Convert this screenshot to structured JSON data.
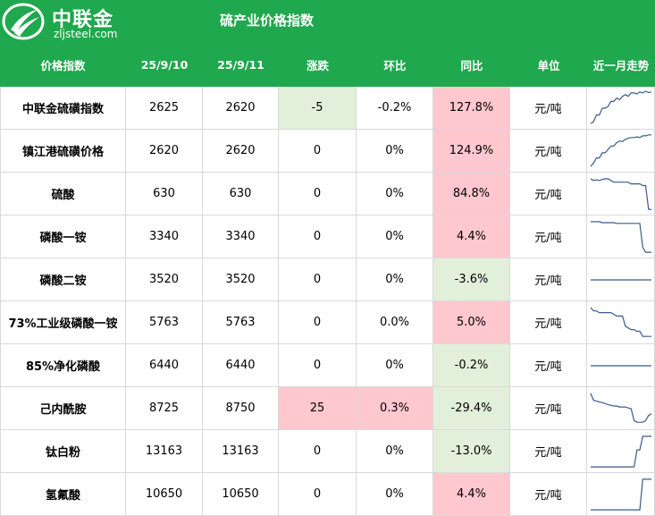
{
  "header": {
    "logo_cn": "中联金",
    "logo_url": "zljsteel.com",
    "title": "硫产业价格指数"
  },
  "columns": [
    "价格指数",
    "25/9/10",
    "25/9/11",
    "涨跌",
    "环比",
    "同比",
    "单位",
    "近一月走势"
  ],
  "colors": {
    "brand_green": "#1fa84d",
    "up_fill": "#ffc7ce",
    "down_fill": "#e2efda",
    "sparkline": "#3b5a8c"
  },
  "rows": [
    {
      "name": "中联金硫磺指数",
      "d1": "2625",
      "d2": "2620",
      "change": "-5",
      "mom": "-0.2%",
      "yoy": "127.8%",
      "unit": "元/吨",
      "change_bg": "green",
      "mom_bg": "none",
      "yoy_bg": "red"
    },
    {
      "name": "镇江港硫磺价格",
      "d1": "2620",
      "d2": "2620",
      "change": "0",
      "mom": "0%",
      "yoy": "124.9%",
      "unit": "元/吨",
      "change_bg": "none",
      "mom_bg": "none",
      "yoy_bg": "red"
    },
    {
      "name": "硫酸",
      "d1": "630",
      "d2": "630",
      "change": "0",
      "mom": "0%",
      "yoy": "84.8%",
      "unit": "元/吨",
      "change_bg": "none",
      "mom_bg": "none",
      "yoy_bg": "red"
    },
    {
      "name": "磷酸一铵",
      "d1": "3340",
      "d2": "3340",
      "change": "0",
      "mom": "0%",
      "yoy": "4.4%",
      "unit": "元/吨",
      "change_bg": "none",
      "mom_bg": "none",
      "yoy_bg": "red"
    },
    {
      "name": "磷酸二铵",
      "d1": "3520",
      "d2": "3520",
      "change": "0",
      "mom": "0%",
      "yoy": "-3.6%",
      "unit": "元/吨",
      "change_bg": "none",
      "mom_bg": "none",
      "yoy_bg": "green"
    },
    {
      "name": "73%工业级磷酸一铵",
      "d1": "5763",
      "d2": "5763",
      "change": "0",
      "mom": "0.0%",
      "yoy": "5.0%",
      "unit": "元/吨",
      "change_bg": "none",
      "mom_bg": "none",
      "yoy_bg": "red"
    },
    {
      "name": "85%净化磷酸",
      "d1": "6440",
      "d2": "6440",
      "change": "0",
      "mom": "0%",
      "yoy": "-0.2%",
      "unit": "元/吨",
      "change_bg": "none",
      "mom_bg": "none",
      "yoy_bg": "green"
    },
    {
      "name": "己内酰胺",
      "d1": "8725",
      "d2": "8750",
      "change": "25",
      "mom": "0.3%",
      "yoy": "-29.4%",
      "unit": "元/吨",
      "change_bg": "red",
      "mom_bg": "red",
      "yoy_bg": "green"
    },
    {
      "name": "钛白粉",
      "d1": "13163",
      "d2": "13163",
      "change": "0",
      "mom": "0%",
      "yoy": "-13.0%",
      "unit": "元/吨",
      "change_bg": "none",
      "mom_bg": "none",
      "yoy_bg": "green"
    },
    {
      "name": "氢氟酸",
      "d1": "10650",
      "d2": "10650",
      "change": "0",
      "mom": "0%",
      "yoy": "4.4%",
      "unit": "元/吨",
      "change_bg": "none",
      "mom_bg": "none",
      "yoy_bg": "red"
    }
  ],
  "trends": [
    [
      0.05,
      0.1,
      0.3,
      0.3,
      0.5,
      0.5,
      0.55,
      0.7,
      0.7,
      0.8,
      0.75,
      0.85,
      0.9,
      0.85,
      0.95,
      0.95,
      0.92,
      0.98,
      0.95,
      1.0,
      0.96,
      0.98
    ],
    [
      0.05,
      0.15,
      0.3,
      0.3,
      0.45,
      0.45,
      0.55,
      0.65,
      0.65,
      0.75,
      0.8,
      0.78,
      0.85,
      0.88,
      0.9,
      0.9,
      0.92,
      0.9,
      0.95,
      0.95,
      0.98,
      0.98
    ],
    [
      0.95,
      0.9,
      0.92,
      0.9,
      0.93,
      0.95,
      0.95,
      0.9,
      0.85,
      0.85,
      0.85,
      0.85,
      0.85,
      0.85,
      0.8,
      0.8,
      0.8,
      0.8,
      0.75,
      0.75,
      0.05,
      0.05
    ],
    [
      0.95,
      0.95,
      0.95,
      0.95,
      0.92,
      0.92,
      0.92,
      0.92,
      0.92,
      0.9,
      0.9,
      0.9,
      0.9,
      0.9,
      0.9,
      0.9,
      0.9,
      0.9,
      0.2,
      0.05,
      0.05,
      0.05
    ],
    [
      0.5,
      0.5,
      0.5,
      0.5,
      0.5,
      0.5,
      0.5,
      0.5,
      0.5,
      0.5,
      0.5,
      0.5,
      0.5,
      0.5,
      0.5,
      0.5,
      0.5,
      0.5,
      0.5,
      0.5,
      0.5,
      0.5
    ],
    [
      0.95,
      0.85,
      0.85,
      0.8,
      0.8,
      0.8,
      0.8,
      0.8,
      0.75,
      0.7,
      0.7,
      0.7,
      0.4,
      0.35,
      0.3,
      0.3,
      0.25,
      0.25,
      0.1,
      0.1,
      0.1,
      0.1
    ],
    [
      0.5,
      0.5,
      0.5,
      0.5,
      0.5,
      0.5,
      0.5,
      0.5,
      0.5,
      0.5,
      0.5,
      0.5,
      0.5,
      0.5,
      0.5,
      0.5,
      0.5,
      0.5,
      0.5,
      0.5,
      0.5,
      0.5
    ],
    [
      0.95,
      0.75,
      0.72,
      0.7,
      0.68,
      0.65,
      0.62,
      0.6,
      0.58,
      0.58,
      0.55,
      0.55,
      0.55,
      0.52,
      0.5,
      0.15,
      0.1,
      0.1,
      0.1,
      0.15,
      0.3,
      0.35
    ],
    [
      0.05,
      0.05,
      0.05,
      0.05,
      0.05,
      0.05,
      0.05,
      0.05,
      0.05,
      0.05,
      0.05,
      0.05,
      0.05,
      0.05,
      0.05,
      0.05,
      0.55,
      0.55,
      0.95,
      0.95,
      0.95,
      0.95
    ],
    [
      0.05,
      0.05,
      0.05,
      0.05,
      0.05,
      0.05,
      0.05,
      0.05,
      0.05,
      0.05,
      0.05,
      0.05,
      0.05,
      0.05,
      0.05,
      0.05,
      0.05,
      0.05,
      0.95,
      0.95,
      0.95,
      0.95
    ]
  ]
}
